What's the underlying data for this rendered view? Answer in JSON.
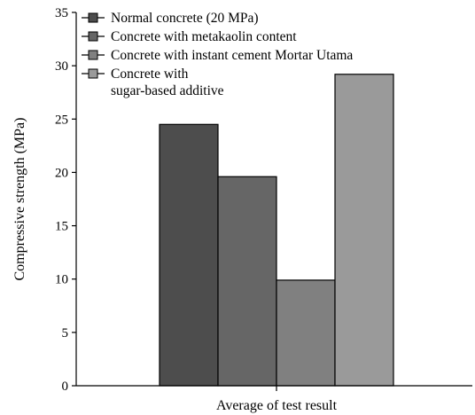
{
  "chart_data": {
    "type": "bar",
    "title": "",
    "xlabel": "Average of test result",
    "ylabel": "Compressive strength (MPa)",
    "ylim": [
      0,
      35
    ],
    "yticks": [
      0,
      5,
      10,
      15,
      20,
      25,
      30,
      35
    ],
    "categories": [
      "Average of test result"
    ],
    "grid": false,
    "legend_position": "top-left",
    "series": [
      {
        "name": "Normal concrete (20 MPa)",
        "values": [
          24.5
        ],
        "color": "#4d4d4d"
      },
      {
        "name": "Concrete with metakaolin content",
        "values": [
          19.6
        ],
        "color": "#666666"
      },
      {
        "name": "Concrete with instant cement Mortar Utama",
        "values": [
          9.9
        ],
        "color": "#808080"
      },
      {
        "name": "Concrete with\nsugar-based additive",
        "values": [
          29.2
        ],
        "color": "#9a9a9a"
      }
    ]
  }
}
